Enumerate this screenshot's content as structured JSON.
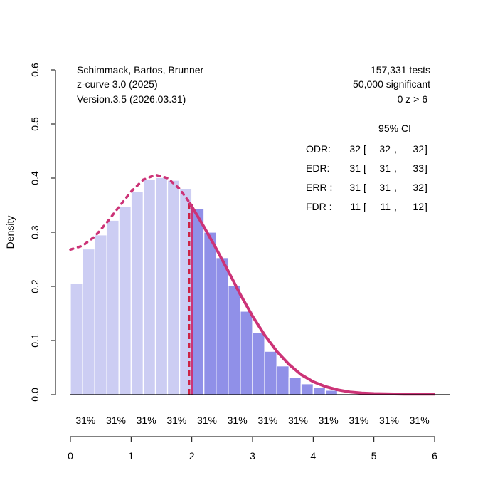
{
  "chart_data": {
    "type": "bar",
    "title": "",
    "xlabel": "",
    "ylabel": "Density",
    "xlim": [
      0,
      6
    ],
    "ylim": [
      0,
      0.6
    ],
    "x_ticks": [
      "0",
      "1",
      "2",
      "3",
      "4",
      "5",
      "6"
    ],
    "y_ticks": [
      "0.0",
      "0.1",
      "0.2",
      "0.3",
      "0.4",
      "0.5",
      "0.6"
    ],
    "bin_width": 0.2,
    "significance_cutoff": 1.96,
    "bars_nonsignificant": {
      "x_start": [
        0.0,
        0.2,
        0.4,
        0.6,
        0.8,
        1.0,
        1.2,
        1.4,
        1.6,
        1.8
      ],
      "values": [
        0.206,
        0.269,
        0.295,
        0.322,
        0.347,
        0.375,
        0.397,
        0.401,
        0.396,
        0.38
      ],
      "color": "#cccdf3"
    },
    "bars_significant": {
      "x_start": [
        2.0,
        2.2,
        2.4,
        2.6,
        2.8,
        3.0,
        3.2,
        3.4,
        3.6,
        3.8,
        4.0,
        4.2
      ],
      "values": [
        0.343,
        0.3,
        0.253,
        0.201,
        0.154,
        0.114,
        0.08,
        0.053,
        0.032,
        0.02,
        0.013,
        0.008
      ],
      "color": "#9090e8"
    },
    "curve_fitted": {
      "name": "fitted density (significant)",
      "x": [
        1.96,
        2.2,
        2.4,
        2.6,
        2.8,
        3.0,
        3.2,
        3.4,
        3.6,
        3.8,
        4.0,
        4.2,
        4.4,
        4.6,
        4.8,
        5.0,
        5.5,
        6.0
      ],
      "y": [
        0.355,
        0.31,
        0.27,
        0.228,
        0.185,
        0.145,
        0.11,
        0.08,
        0.056,
        0.037,
        0.024,
        0.015,
        0.009,
        0.005,
        0.003,
        0.002,
        0.001,
        0.001
      ],
      "color": "#cc3377",
      "style": "solid"
    },
    "curve_extrapolated": {
      "name": "extrapolated density (non-significant)",
      "x": [
        0.0,
        0.2,
        0.4,
        0.6,
        0.8,
        1.0,
        1.2,
        1.4,
        1.6,
        1.8,
        1.96
      ],
      "y": [
        0.268,
        0.275,
        0.292,
        0.318,
        0.347,
        0.375,
        0.397,
        0.406,
        0.4,
        0.38,
        0.355
      ],
      "color": "#cc3377",
      "style": "dotted"
    },
    "cutoff_line": {
      "x": 1.96,
      "color": "#cc2244",
      "style": "dashed"
    },
    "solid_vline": {
      "x": 2.0,
      "color": "#cc3377"
    },
    "power_labels": [
      "31%",
      "31%",
      "31%",
      "31%",
      "31%",
      "31%",
      "31%",
      "31%",
      "31%",
      "31%",
      "31%",
      "31%"
    ],
    "power_label_x": [
      0.25,
      0.75,
      1.25,
      1.75,
      2.25,
      2.75,
      3.25,
      3.75,
      4.25,
      4.75,
      5.25,
      5.75
    ],
    "annotations_left": [
      "Schimmack, Bartos, Brunner",
      "z-curve 3.0 (2025)",
      "Version.3.5 (2026.03.31)"
    ],
    "annotations_right": [
      "157,331 tests",
      "50,000 significant",
      "0 z > 6"
    ],
    "ci_header": "95% CI",
    "ci_table": [
      {
        "label": "ODR:",
        "est": "32",
        "lo": "32",
        "hi": "32"
      },
      {
        "label": "EDR:",
        "est": "31",
        "lo": "31",
        "hi": "33"
      },
      {
        "label": "ERR :",
        "est": "31",
        "lo": "31",
        "hi": "32"
      },
      {
        "label": "FDR :",
        "est": "11",
        "lo": "11",
        "hi": "12"
      }
    ]
  }
}
